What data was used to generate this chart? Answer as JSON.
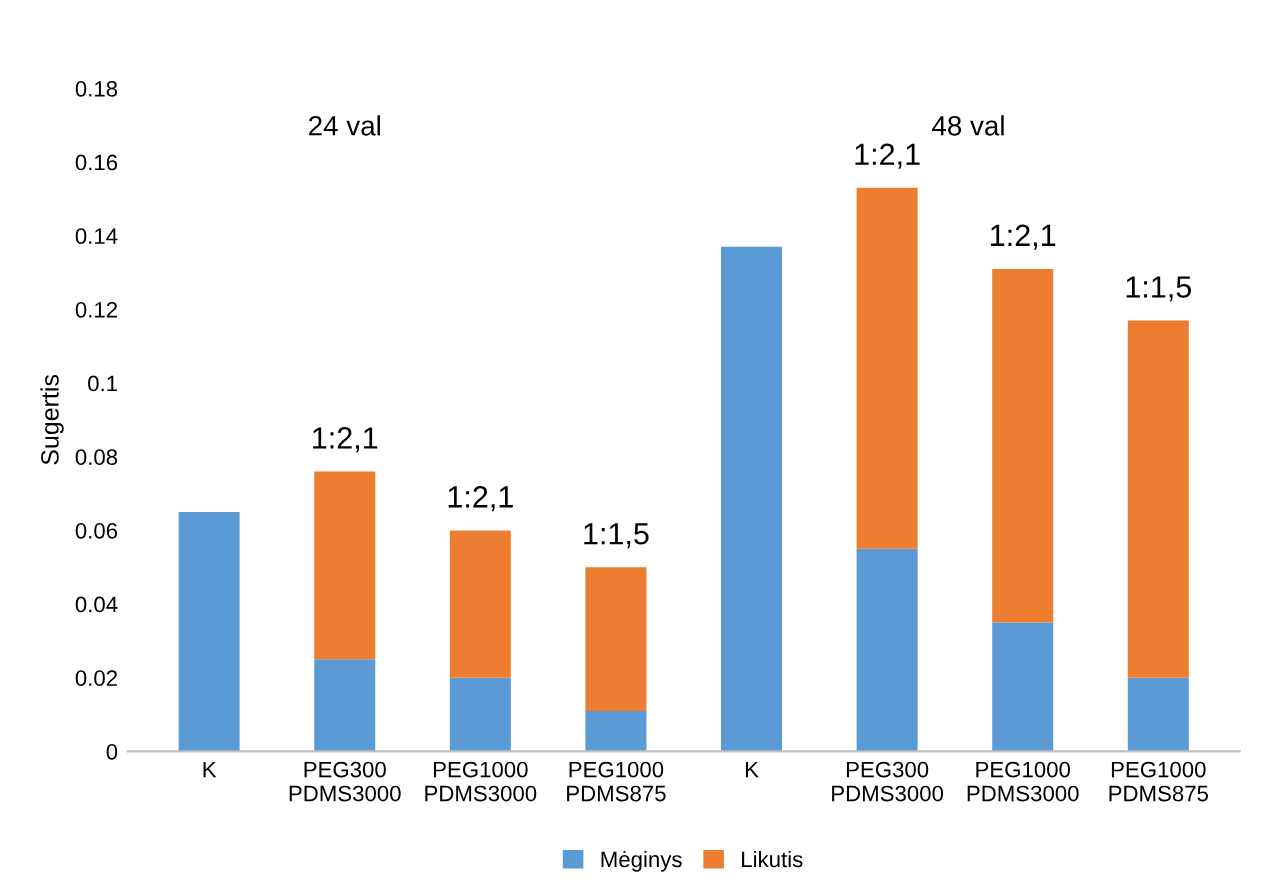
{
  "chart_data": {
    "type": "bar",
    "stacked": true,
    "ylabel": "Sugertis",
    "categories": [
      "K",
      "PEG300\nPDMS3000",
      "PEG1000\nPDMS3000",
      "PEG1000\nPDMS875",
      "K",
      "PEG300\nPDMS3000",
      "PEG1000\nPDMS3000",
      "PEG1000\nPDMS875"
    ],
    "series": [
      {
        "name": "Mėginys",
        "color": "#5b9bd5",
        "values": [
          0.065,
          0.025,
          0.02,
          0.011,
          0.137,
          0.055,
          0.035,
          0.02
        ]
      },
      {
        "name": "Likutis",
        "color": "#ed7d31",
        "values": [
          null,
          0.051,
          0.04,
          0.039,
          null,
          0.098,
          0.096,
          0.097
        ]
      }
    ],
    "ylim": [
      0,
      0.18
    ],
    "yticks": [
      0,
      0.02,
      0.04,
      0.06,
      0.08,
      0.1,
      0.12,
      0.14,
      0.16,
      0.18
    ],
    "grid": false,
    "legend": "bottom",
    "annotations": [
      "24 val",
      "48 val",
      "1:2,1",
      "1:2,1",
      "1:1,5",
      "1:2,1",
      "1:2,1",
      "1:1,5"
    ]
  }
}
